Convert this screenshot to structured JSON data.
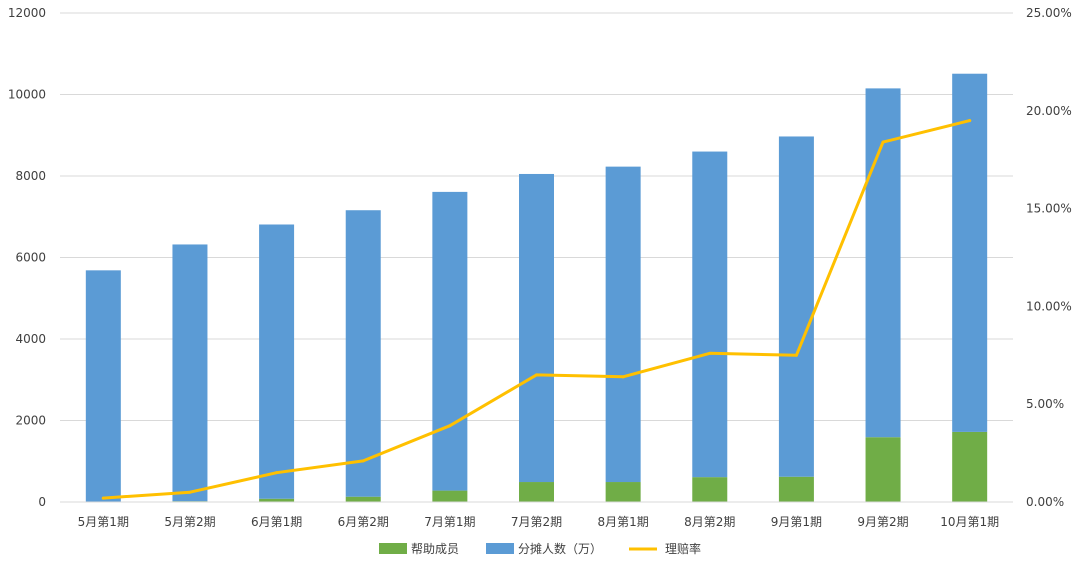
{
  "chart_data": {
    "type": "bar",
    "stacked": true,
    "categories": [
      "5月第1期",
      "5月第2期",
      "6月第1期",
      "6月第2期",
      "7月第1期",
      "7月第2期",
      "8月第1期",
      "8月第2期",
      "9月第1期",
      "9月第2期",
      "10月第1期"
    ],
    "series": [
      {
        "name": "帮助成员",
        "type": "bar",
        "axis": "left",
        "color": "#70ad47",
        "values": [
          5,
          20,
          80,
          130,
          280,
          490,
          490,
          610,
          620,
          1590,
          1720
        ]
      },
      {
        "name": "分摊人数（万）",
        "type": "bar",
        "axis": "left",
        "color": "#5b9bd5",
        "values": [
          5680,
          6300,
          6730,
          7030,
          7330,
          7560,
          7740,
          7990,
          8350,
          8560,
          8790
        ]
      },
      {
        "name": "理赔率",
        "type": "line",
        "axis": "right",
        "color": "#ffc000",
        "values": [
          0.2,
          0.5,
          1.5,
          2.1,
          3.9,
          6.5,
          6.4,
          7.6,
          7.5,
          18.4,
          19.5
        ]
      }
    ],
    "ylim": [
      0,
      12000
    ],
    "y_ticks": [
      "0",
      "2000",
      "4000",
      "6000",
      "8000",
      "10000",
      "12000"
    ],
    "y2lim": [
      0,
      25
    ],
    "y2_ticks": [
      "0.00%",
      "5.00%",
      "10.00%",
      "15.00%",
      "20.00%",
      "25.00%"
    ],
    "grid": true,
    "legend_position": "bottom"
  }
}
